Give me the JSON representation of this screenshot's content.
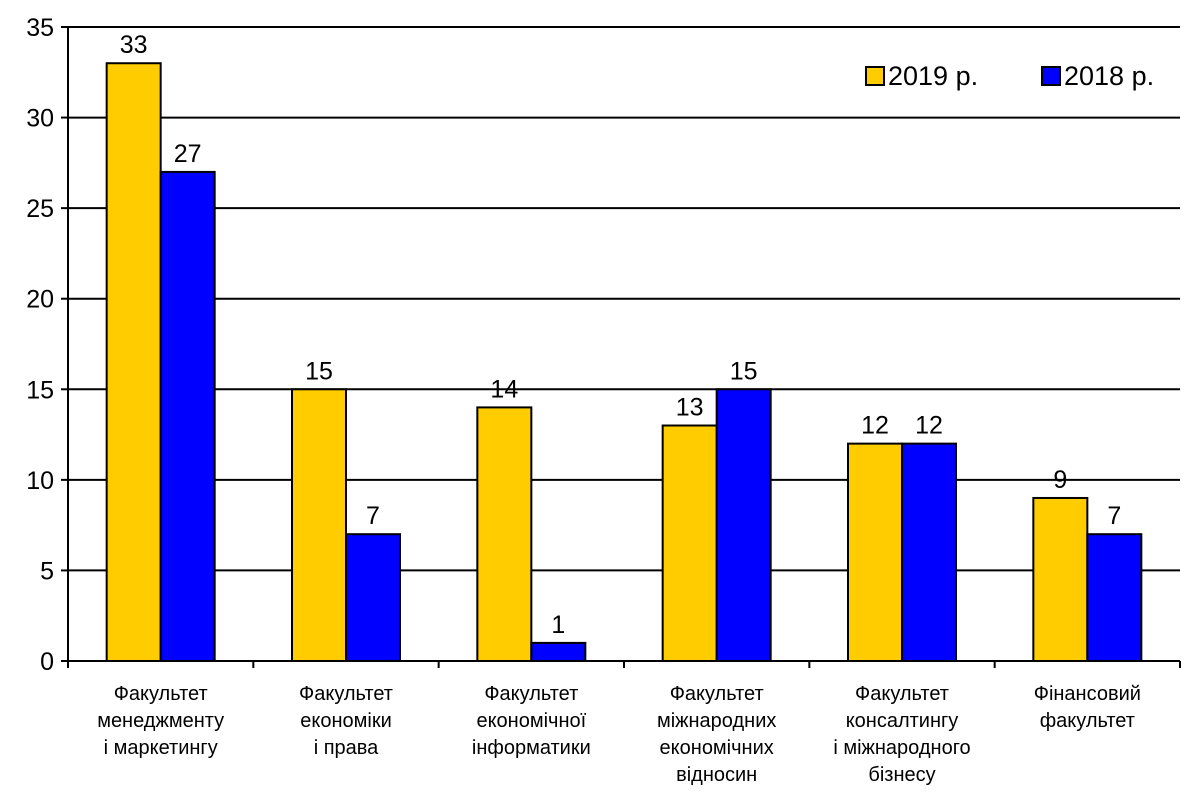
{
  "chart_data": {
    "type": "bar",
    "title": "",
    "xlabel": "",
    "ylabel": "",
    "ylim": [
      0,
      35
    ],
    "yticks": [
      0,
      5,
      10,
      15,
      20,
      25,
      30,
      35
    ],
    "grid": true,
    "legend_position": "top-right",
    "categories": [
      [
        "Факультет",
        "менеджменту",
        "і маркетингу"
      ],
      [
        "Факультет",
        "економіки",
        "і права"
      ],
      [
        "Факультет",
        "економічної",
        "інформатики"
      ],
      [
        "Факультет",
        "міжнародних",
        "економічних",
        "відносин"
      ],
      [
        "Факультет",
        "консалтингу",
        "і міжнародного",
        "бізнесу"
      ],
      [
        "Фінансовий",
        "факультет"
      ]
    ],
    "series": [
      {
        "name": "2019 р.",
        "color": "#FFCC00",
        "values": [
          33,
          15,
          14,
          13,
          12,
          9
        ]
      },
      {
        "name": "2018 р.",
        "color": "#0000FF",
        "values": [
          27,
          7,
          1,
          15,
          12,
          7
        ]
      }
    ]
  }
}
